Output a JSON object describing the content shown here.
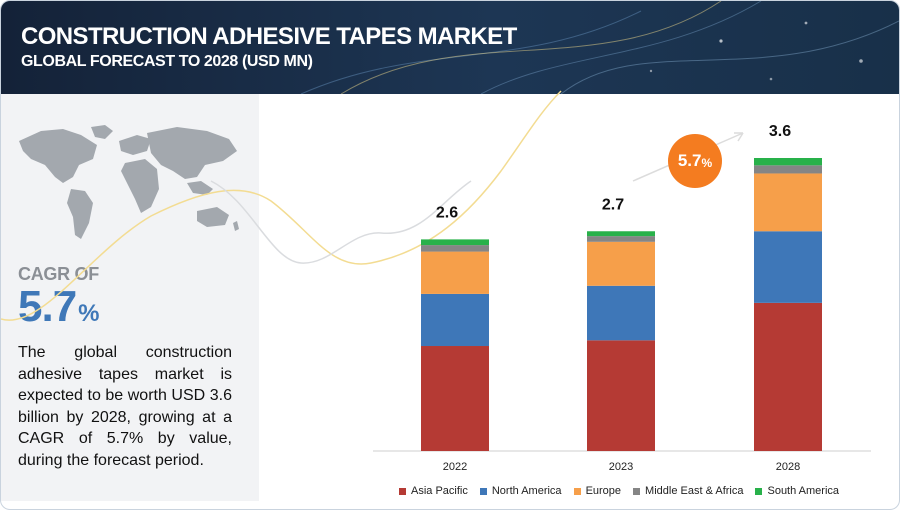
{
  "header": {
    "title": "CONSTRUCTION ADHESIVE TAPES MARKET",
    "subtitle": "GLOBAL FORECAST TO 2028 (USD MN)"
  },
  "left_panel": {
    "cagr_label": "CAGR OF",
    "cagr_number": "5.7",
    "cagr_unit": "%",
    "description": "The global construction adhesive tapes market is expected to be worth USD 3.6 billion by 2028, growing at a CAGR of 5.7% by value, during the forecast period."
  },
  "growth_bubble": {
    "number": "5.7",
    "unit": "%"
  },
  "chart_data": {
    "type": "bar",
    "stacked": true,
    "categories": [
      "2022",
      "2023",
      "2028"
    ],
    "totals": [
      2.6,
      2.7,
      3.6
    ],
    "series": [
      {
        "name": "Asia Pacific",
        "color": "#b53a34",
        "values": [
          1.29,
          1.36,
          1.82
        ]
      },
      {
        "name": "North America",
        "color": "#3e77b8",
        "values": [
          0.64,
          0.67,
          0.88
        ]
      },
      {
        "name": "Europe",
        "color": "#f69f4a",
        "values": [
          0.52,
          0.54,
          0.71
        ]
      },
      {
        "name": "Middle East & Africa",
        "color": "#858585",
        "values": [
          0.08,
          0.07,
          0.1
        ]
      },
      {
        "name": "South America",
        "color": "#28b14a",
        "values": [
          0.07,
          0.06,
          0.09
        ]
      }
    ],
    "legend_position": "bottom",
    "grid": false,
    "ylim": [
      0,
      3.6
    ]
  }
}
